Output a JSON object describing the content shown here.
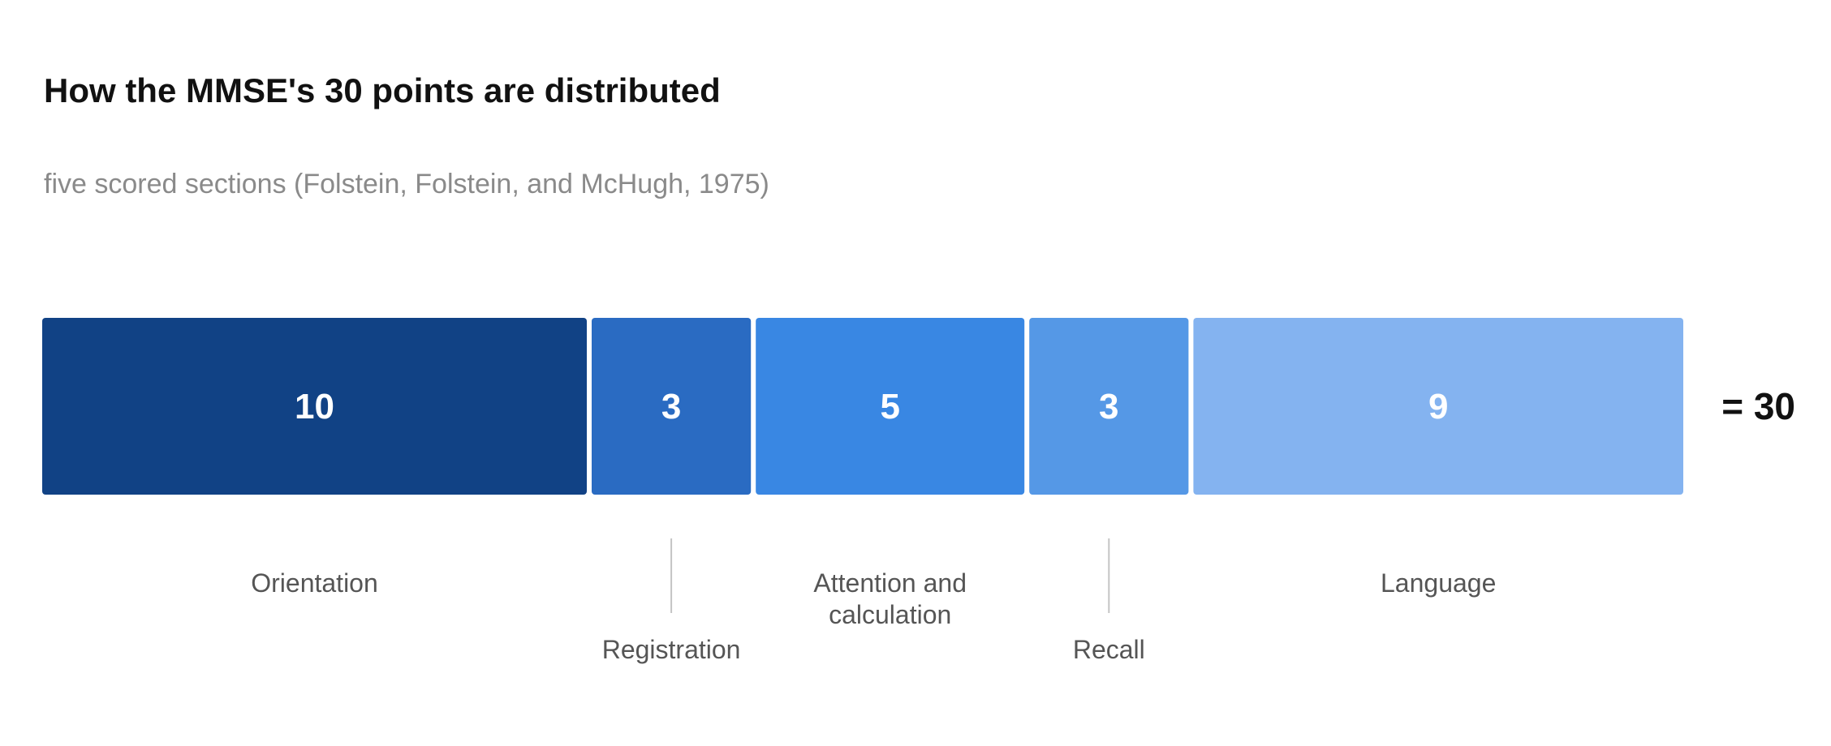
{
  "chart_data": {
    "type": "bar",
    "orientation": "horizontal-stacked",
    "title": "How the MMSE's 30 points are distributed",
    "subtitle": "five scored sections (Folstein, Folstein, and McHugh, 1975)",
    "categories": [
      "Orientation",
      "Registration",
      "Attention and calculation",
      "Recall",
      "Language"
    ],
    "category_lines": [
      [
        "Orientation"
      ],
      [
        "Registration"
      ],
      [
        "Attention and",
        "calculation"
      ],
      [
        "Recall"
      ],
      [
        "Language"
      ]
    ],
    "values": [
      10,
      3,
      5,
      3,
      9
    ],
    "value_labels": [
      "10",
      "3",
      "5",
      "3",
      "9"
    ],
    "colors": [
      "#114285",
      "#2a6bc2",
      "#3987e3",
      "#5598e6",
      "#84b3f0"
    ],
    "total_label": "= 30",
    "label_placement": [
      "below",
      "below-leader",
      "below",
      "below-leader",
      "below"
    ]
  }
}
